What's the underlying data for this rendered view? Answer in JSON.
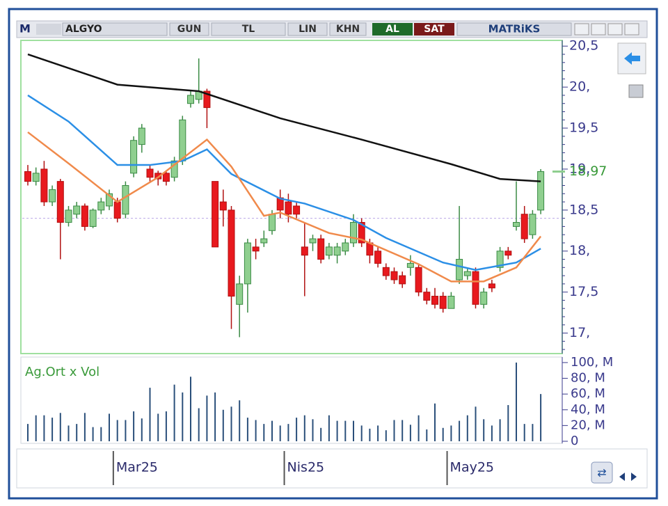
{
  "toolbar": {
    "logo": "M",
    "symbol": "ALGYO",
    "period": "GUN",
    "currency": "TL",
    "scale": "LIN",
    "mode": "KHN",
    "buy": "AL",
    "sell": "SAT",
    "brand": "MATRiKS"
  },
  "chart_data": {
    "type": "candlestick",
    "categories": [
      null,
      null,
      null,
      null,
      null,
      null,
      null,
      null,
      null,
      null,
      null,
      "Mar25",
      null,
      null,
      null,
      null,
      null,
      null,
      null,
      null,
      null,
      null,
      null,
      null,
      null,
      null,
      null,
      null,
      null,
      null,
      null,
      null,
      "Nis25",
      null,
      null,
      null,
      null,
      null,
      null,
      null,
      null,
      null,
      null,
      null,
      null,
      null,
      null,
      null,
      null,
      null,
      null,
      null,
      "May25",
      null,
      null,
      null,
      null,
      null,
      null,
      null,
      null,
      null,
      null,
      null
    ],
    "open": [
      18.97,
      18.85,
      19.0,
      18.6,
      18.85,
      18.35,
      18.45,
      18.55,
      18.3,
      18.5,
      18.55,
      18.6,
      18.45,
      18.95,
      19.3,
      19.0,
      18.95,
      18.95,
      18.9,
      19.1,
      19.8,
      19.85,
      19.95,
      18.85,
      18.6,
      18.5,
      17.35,
      17.6,
      18.05,
      18.1,
      18.25,
      18.65,
      18.6,
      18.55,
      18.05,
      18.1,
      18.15,
      17.95,
      17.95,
      18.0,
      18.1,
      18.35,
      18.1,
      18.0,
      17.8,
      17.75,
      17.7,
      17.8,
      17.8,
      17.5,
      17.45,
      17.45,
      17.3,
      17.65,
      17.7,
      17.75,
      17.35,
      17.6,
      17.8,
      18.0,
      18.3,
      18.45,
      18.2,
      18.5
    ],
    "high": [
      19.05,
      19.02,
      19.1,
      18.8,
      18.88,
      18.55,
      18.6,
      18.58,
      18.52,
      18.65,
      18.75,
      18.65,
      18.85,
      19.4,
      19.55,
      19.05,
      18.98,
      18.98,
      19.15,
      19.65,
      19.95,
      20.35,
      19.98,
      18.85,
      18.75,
      18.55,
      17.7,
      18.15,
      18.15,
      18.25,
      18.5,
      18.75,
      18.7,
      18.6,
      18.35,
      18.2,
      18.2,
      18.1,
      18.1,
      18.15,
      18.45,
      18.4,
      18.15,
      18.05,
      17.85,
      17.8,
      17.75,
      17.95,
      17.85,
      17.55,
      17.55,
      17.5,
      17.5,
      18.55,
      17.8,
      17.8,
      17.55,
      17.65,
      18.05,
      18.05,
      18.85,
      18.55,
      18.5,
      19.0
    ],
    "low": [
      18.8,
      18.8,
      18.55,
      18.55,
      17.9,
      18.3,
      18.4,
      18.25,
      18.28,
      18.45,
      18.5,
      18.35,
      18.4,
      18.9,
      19.2,
      18.85,
      18.8,
      18.8,
      18.85,
      19.05,
      19.75,
      19.8,
      19.5,
      18.05,
      18.3,
      17.05,
      16.95,
      17.25,
      17.9,
      18.05,
      18.2,
      18.4,
      18.35,
      18.4,
      17.45,
      18.0,
      17.85,
      17.9,
      17.85,
      17.95,
      18.05,
      18.05,
      17.85,
      17.8,
      17.65,
      17.6,
      17.55,
      17.7,
      17.45,
      17.35,
      17.3,
      17.25,
      17.3,
      17.6,
      17.65,
      17.3,
      17.3,
      17.5,
      17.75,
      17.9,
      18.25,
      18.1,
      18.15,
      18.45
    ],
    "close": [
      18.85,
      18.95,
      18.6,
      18.75,
      18.35,
      18.5,
      18.55,
      18.3,
      18.5,
      18.6,
      18.7,
      18.4,
      18.8,
      19.35,
      19.5,
      18.9,
      18.88,
      18.85,
      19.1,
      19.6,
      19.9,
      19.95,
      19.75,
      18.05,
      18.5,
      17.45,
      17.6,
      18.1,
      18.0,
      18.15,
      18.45,
      18.5,
      18.45,
      18.45,
      17.95,
      18.15,
      17.9,
      18.05,
      18.05,
      18.1,
      18.35,
      18.1,
      17.95,
      17.85,
      17.7,
      17.65,
      17.6,
      17.85,
      17.5,
      17.4,
      17.35,
      17.3,
      17.45,
      17.9,
      17.75,
      17.35,
      17.5,
      17.55,
      18.0,
      17.95,
      18.35,
      18.15,
      18.45,
      18.97
    ],
    "up_color": "#8fcf8f",
    "down_color": "#e8191e",
    "lines": [
      {
        "color": "#111111",
        "x": [
          0,
          11,
          21,
          31,
          41,
          52,
          58,
          63
        ],
        "values": [
          20.4,
          20.03,
          19.95,
          19.62,
          19.36,
          19.06,
          18.88,
          18.85
        ]
      },
      {
        "color": "#2b8fe6",
        "x": [
          0,
          5,
          11,
          15,
          19,
          22,
          25,
          31,
          34,
          40,
          44,
          51,
          55,
          60,
          63
        ],
        "values": [
          19.9,
          19.58,
          19.05,
          19.05,
          19.1,
          19.24,
          18.94,
          18.64,
          18.58,
          18.38,
          18.16,
          17.86,
          17.77,
          17.86,
          18.03
        ]
      },
      {
        "color": "#f08a4b",
        "x": [
          0,
          5,
          11,
          16,
          22,
          25,
          29,
          31,
          37,
          41,
          48,
          52,
          56,
          60,
          63
        ],
        "values": [
          19.45,
          19.07,
          18.6,
          18.9,
          19.36,
          19.03,
          18.43,
          18.47,
          18.22,
          18.14,
          17.84,
          17.63,
          17.63,
          17.8,
          18.18
        ]
      }
    ],
    "reference_line": 18.4,
    "last_price": {
      "value": 18.97,
      "label": "18,97"
    },
    "ylim": [
      16.75,
      20.57
    ],
    "yticks": [
      {
        "value": 17,
        "label": "17,"
      },
      {
        "value": 17.5,
        "label": "17,5"
      },
      {
        "value": 18,
        "label": "18,"
      },
      {
        "value": 18.5,
        "label": "18,5"
      },
      {
        "value": 19,
        "label": "19,"
      },
      {
        "value": 19.5,
        "label": "19,5"
      },
      {
        "value": 20,
        "label": "20,"
      },
      {
        "value": 20.5,
        "label": "20,5"
      }
    ],
    "volume": {
      "title": "Ag.Ort x Vol",
      "color": "#2a4f7a",
      "values": [
        22,
        33,
        33,
        30,
        36,
        20,
        22,
        36,
        18,
        18,
        35,
        27,
        27,
        38,
        29,
        68,
        35,
        38,
        72,
        62,
        82,
        42,
        58,
        62,
        40,
        44,
        52,
        30,
        27,
        22,
        26,
        20,
        22,
        30,
        33,
        28,
        17,
        33,
        26,
        26,
        26,
        20,
        16,
        20,
        14,
        27,
        27,
        21,
        33,
        15,
        48,
        17,
        20,
        26,
        33,
        44,
        28,
        20,
        28,
        46,
        100,
        22,
        22,
        60
      ],
      "ylim": [
        0,
        107
      ],
      "yticks": [
        {
          "value": 0,
          "label": "0"
        },
        {
          "value": 20,
          "label": "20, M"
        },
        {
          "value": 40,
          "label": "40, M"
        },
        {
          "value": 60,
          "label": "60, M"
        },
        {
          "value": 80,
          "label": "80, M"
        },
        {
          "value": 100,
          "label": "100, M"
        }
      ]
    }
  }
}
